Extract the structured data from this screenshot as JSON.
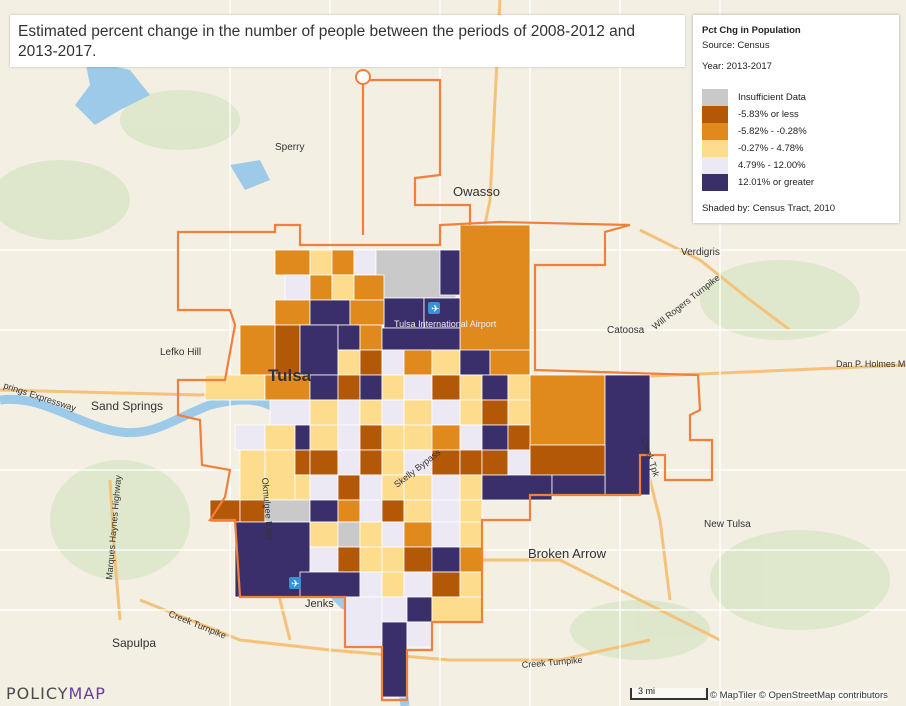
{
  "title": "Estimated percent change in the number of people between the periods of 2008-2012 and 2013-2017.",
  "legend": {
    "title": "Pct Chg in Population",
    "source": "Source: Census",
    "year": "Year: 2013-2017",
    "items": [
      {
        "label": "Insufficient Data",
        "color": "#c9c9c9"
      },
      {
        "label": "-5.83% or less",
        "color": "#b35806"
      },
      {
        "label": "-5.82% - -0.28%",
        "color": "#e08a1e"
      },
      {
        "label": "-0.27% - 4.78%",
        "color": "#fddc8e"
      },
      {
        "label": "4.79% - 12.00%",
        "color": "#ece9f4"
      },
      {
        "label": "12.01% or greater",
        "color": "#3b2f6b"
      }
    ],
    "shaded_by": "Shaded by: Census Tract, 2010"
  },
  "places": {
    "tulsa": "Tulsa",
    "owasso": "Owasso",
    "sperry": "Sperry",
    "verdigris": "Verdigris",
    "catoosa": "Catoosa",
    "lefko_hill": "Lefko Hill",
    "sand_springs": "Sand Springs",
    "broken_arrow": "Broken Arrow",
    "new_tulsa": "New Tulsa",
    "jenks": "Jenks",
    "sapulpa": "Sapulpa",
    "airport": "Tulsa International Airport",
    "will_rogers": "Will Rogers Turnpike",
    "dan_holmes": "Dan P. Holmes M",
    "springs_expressway": "prings Expressway",
    "creek_turnpike_w": "Creek Turnpike",
    "creek_turnpike_s": "Creek Turnpike",
    "marques_haynes": "Marques Haynes Highway",
    "okmulgee": "Okmulgee Expy",
    "gilcrease": "Skelly Bypass",
    "creek_e": "Creek Tpk"
  },
  "logo": {
    "left": "POLICY",
    "right": "MAP"
  },
  "scale": "3 mi",
  "attribution": "© MapTiler © OpenStreetMap contributors"
}
